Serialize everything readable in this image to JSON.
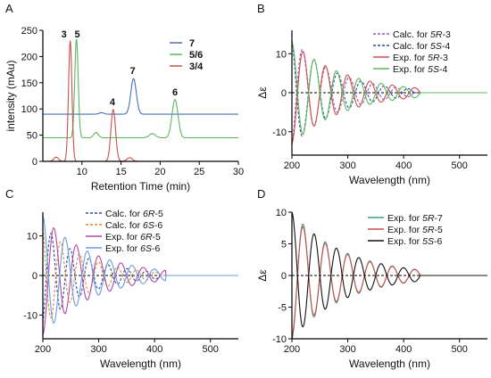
{
  "chart_data": [
    {
      "panel_label": "A",
      "type": "line",
      "xlabel": "Retention Time (min)",
      "ylabel": "intensity (mAu)",
      "xlim": [
        5,
        30
      ],
      "ylim": [
        0,
        250
      ],
      "xticks": [
        "10",
        "15",
        "20",
        "25",
        "30"
      ],
      "xtick_values": [
        10,
        15,
        20,
        25,
        30
      ],
      "yticks": [
        "0",
        "50",
        "100",
        "150",
        "200",
        "250"
      ],
      "ytick_values": [
        0,
        50,
        100,
        150,
        200,
        250
      ],
      "legend_position": "right",
      "series": [
        {
          "name": "7",
          "color": "#4472b0",
          "baseline": 90,
          "peaks": [
            {
              "x": 12.5,
              "h": 3,
              "w": 0.3
            },
            {
              "x": 16.6,
              "h": 68,
              "w": 0.35
            }
          ]
        },
        {
          "name": "5/6",
          "color": "#5cb85c",
          "baseline": 45,
          "peaks": [
            {
              "x": 9.3,
              "h": 188,
              "w": 0.22
            },
            {
              "x": 11.8,
              "h": 10,
              "w": 0.3
            },
            {
              "x": 19.0,
              "h": 8,
              "w": 0.4
            },
            {
              "x": 21.9,
              "h": 73,
              "w": 0.38
            }
          ]
        },
        {
          "name": "3/4",
          "color": "#c9504c",
          "baseline": 0,
          "peaks": [
            {
              "x": 6.7,
              "h": 8,
              "w": 0.3
            },
            {
              "x": 8.5,
              "h": 230,
              "w": 0.22
            },
            {
              "x": 14.0,
              "h": 99,
              "w": 0.3
            },
            {
              "x": 16.1,
              "h": 7,
              "w": 0.35
            }
          ]
        }
      ],
      "annotations": [
        {
          "text": "3",
          "x": 7.7,
          "y": 236
        },
        {
          "text": "5",
          "x": 9.4,
          "y": 236
        },
        {
          "text": "4",
          "x": 13.9,
          "y": 107
        },
        {
          "text": "7",
          "x": 16.5,
          "y": 167
        },
        {
          "text": "6",
          "x": 21.9,
          "y": 126
        }
      ]
    },
    {
      "panel_label": "B",
      "type": "line",
      "xlabel": "Wavelength (nm)",
      "ylabel": "Δε",
      "xlim": [
        200,
        550
      ],
      "ylim": [
        -16,
        16
      ],
      "xticks": [
        "200",
        "300",
        "400",
        "500"
      ],
      "xtick_values": [
        200,
        300,
        400,
        500
      ],
      "yticks": [
        "-10",
        "0",
        "10"
      ],
      "ytick_values": [
        -10,
        0,
        10
      ],
      "zero_line": true,
      "legend_position": "top-right",
      "series": [
        {
          "name": "Calc. for 5R-3",
          "name_pre": "Calc. for ",
          "name_italic": "5R",
          "name_post": "-3",
          "color": "#9b59b6",
          "dashed": true,
          "x0": 200,
          "amp": -14,
          "period": 42,
          "decay": 80,
          "phase": 0.3,
          "cutoff": 420
        },
        {
          "name": "Calc. for 5S-4",
          "name_pre": "Calc. for ",
          "name_italic": "5S",
          "name_post": "-4",
          "color": "#2c4ea0",
          "dashed": true,
          "x0": 200,
          "amp": 14,
          "period": 42,
          "decay": 80,
          "phase": 0.3,
          "cutoff": 420
        },
        {
          "name": "Exp. for 5R-3",
          "name_pre": "Exp. for ",
          "name_italic": "5R",
          "name_post": "-3",
          "color": "#c9504c",
          "dashed": false,
          "x0": 200,
          "amp": -13,
          "period": 40,
          "decay": 95,
          "phase": 0.0,
          "cutoff": 430
        },
        {
          "name": "Exp. for 5S-4",
          "name_pre": "Exp. for ",
          "name_italic": "5S",
          "name_post": "-4",
          "color": "#5cb85c",
          "dashed": false,
          "x0": 200,
          "amp": 13,
          "period": 40,
          "decay": 95,
          "phase": 0.0,
          "cutoff": 430
        }
      ]
    },
    {
      "panel_label": "C",
      "type": "line",
      "xlabel": "Wavelength (nm)",
      "ylabel": "",
      "xlim": [
        200,
        550
      ],
      "ylim": [
        -16,
        16
      ],
      "xticks": [
        "200",
        "300",
        "400",
        "500"
      ],
      "xtick_values": [
        200,
        300,
        400,
        500
      ],
      "yticks": [
        "-10",
        "0",
        "10"
      ],
      "ytick_values": [
        -10,
        0,
        10
      ],
      "zero_line": true,
      "legend_position": "top-right",
      "series": [
        {
          "name": "Calc. for 6R-5",
          "name_pre": "Calc. for ",
          "name_italic": "6R",
          "name_post": "-5",
          "color": "#2c4ea0",
          "dashed": true,
          "x0": 200,
          "amp": -13,
          "period": 34,
          "decay": 75,
          "phase": 0.4,
          "cutoff": 410
        },
        {
          "name": "Calc. for 6S-6",
          "name_pre": "Calc. for ",
          "name_italic": "6S",
          "name_post": "-6",
          "color": "#d98c3a",
          "dashed": true,
          "x0": 200,
          "amp": 13,
          "period": 34,
          "decay": 75,
          "phase": 0.4,
          "cutoff": 410
        },
        {
          "name": "Exp. for 6R-5",
          "name_pre": "Exp. for ",
          "name_italic": "6R",
          "name_post": "-5",
          "color": "#b04aa5",
          "dashed": false,
          "x0": 200,
          "amp": -15,
          "period": 40,
          "decay": 90,
          "phase": 0.0,
          "cutoff": 420
        },
        {
          "name": "Exp. for 6S-6",
          "name_pre": "Exp. for ",
          "name_italic": "6S",
          "name_post": "-6",
          "color": "#6b9be0",
          "dashed": false,
          "x0": 200,
          "amp": 15,
          "period": 40,
          "decay": 90,
          "phase": 0.0,
          "cutoff": 420
        }
      ]
    },
    {
      "panel_label": "D",
      "type": "line",
      "xlabel": "Wavelength (nm)",
      "ylabel": "Δε",
      "xlim": [
        200,
        550
      ],
      "ylim": [
        -10,
        10
      ],
      "xticks": [
        "200",
        "300",
        "400",
        "500"
      ],
      "xtick_values": [
        200,
        300,
        400,
        500
      ],
      "yticks": [
        "-10",
        "-5",
        "0",
        "5",
        "10"
      ],
      "ytick_values": [
        -10,
        -5,
        0,
        5,
        10
      ],
      "zero_line": true,
      "legend_position": "top-right",
      "series": [
        {
          "name": "Exp. for 5R-7",
          "name_pre": "Exp. for ",
          "name_italic": "5R",
          "name_post": "-7",
          "color": "#3a9e86",
          "dashed": false,
          "x0": 200,
          "amp": -10,
          "period": 40,
          "decay": 95,
          "phase": 0.0,
          "cutoff": 430
        },
        {
          "name": "Exp. for 5R-5",
          "name_pre": "Exp. for ",
          "name_italic": "5R",
          "name_post": "-5",
          "color": "#c9504c",
          "dashed": false,
          "x0": 200,
          "amp": -9.5,
          "period": 40,
          "decay": 95,
          "phase": 0.0,
          "cutoff": 430
        },
        {
          "name": "Exp. for 5S-6",
          "name_pre": "Exp. for ",
          "name_italic": "5S",
          "name_post": "-6",
          "color": "#111111",
          "dashed": false,
          "x0": 200,
          "amp": 10,
          "period": 40,
          "decay": 95,
          "phase": 0.0,
          "cutoff": 430
        }
      ]
    }
  ]
}
